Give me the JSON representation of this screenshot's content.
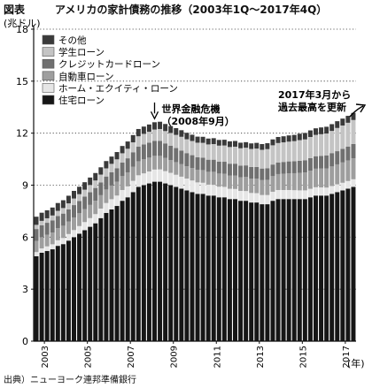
{
  "figure_label": "図表",
  "title": "アメリカの家計債務の推移（2003年1Q～2017年4Q）",
  "source": "出典）ニューヨーク連邦準備銀行",
  "colors": {
    "other": "#3a3a3a",
    "student": "#c4c4c4",
    "credit": "#707070",
    "auto": "#9e9e9e",
    "heloc": "#e6e6e6",
    "mortgage": "#161616",
    "grid": "#333333",
    "axis": "#111111"
  },
  "chart_data": {
    "type": "bar",
    "stacked": true,
    "ylabel": "(兆ドル)",
    "xlabel": "(年)",
    "ylim": [
      0,
      18
    ],
    "yticks": [
      0,
      3,
      6,
      9,
      12,
      15,
      18
    ],
    "xtick_labels": [
      "2003",
      "2005",
      "2007",
      "2009",
      "2011",
      "2013",
      "2015",
      "2017"
    ],
    "grid": "horizontal dotted",
    "legend_position": "top-left",
    "categories": [
      "2003 Q1",
      "2003 Q2",
      "2003 Q3",
      "2003 Q4",
      "2004 Q1",
      "2004 Q2",
      "2004 Q3",
      "2004 Q4",
      "2005 Q1",
      "2005 Q2",
      "2005 Q3",
      "2005 Q4",
      "2006 Q1",
      "2006 Q2",
      "2006 Q3",
      "2006 Q4",
      "2007 Q1",
      "2007 Q2",
      "2007 Q3",
      "2007 Q4",
      "2008 Q1",
      "2008 Q2",
      "2008 Q3",
      "2008 Q4",
      "2009 Q1",
      "2009 Q2",
      "2009 Q3",
      "2009 Q4",
      "2010 Q1",
      "2010 Q2",
      "2010 Q3",
      "2010 Q4",
      "2011 Q1",
      "2011 Q2",
      "2011 Q3",
      "2011 Q4",
      "2012 Q1",
      "2012 Q2",
      "2012 Q3",
      "2012 Q4",
      "2013 Q1",
      "2013 Q2",
      "2013 Q3",
      "2013 Q4",
      "2014 Q1",
      "2014 Q2",
      "2014 Q3",
      "2014 Q4",
      "2015 Q1",
      "2015 Q2",
      "2015 Q3",
      "2015 Q4",
      "2016 Q1",
      "2016 Q2",
      "2016 Q3",
      "2016 Q4",
      "2017 Q1",
      "2017 Q2",
      "2017 Q3",
      "2017 Q4"
    ],
    "series": [
      {
        "name": "住宅ローン",
        "color_key": "mortgage",
        "values": [
          4.9,
          5.1,
          5.2,
          5.3,
          5.5,
          5.6,
          5.8,
          6.0,
          6.2,
          6.4,
          6.6,
          6.8,
          7.1,
          7.4,
          7.6,
          7.8,
          8.1,
          8.3,
          8.6,
          8.9,
          9.0,
          9.1,
          9.2,
          9.2,
          9.1,
          9.0,
          8.9,
          8.8,
          8.7,
          8.6,
          8.5,
          8.5,
          8.4,
          8.4,
          8.3,
          8.3,
          8.2,
          8.2,
          8.1,
          8.1,
          8.0,
          8.0,
          7.9,
          7.9,
          8.1,
          8.2,
          8.2,
          8.2,
          8.2,
          8.2,
          8.2,
          8.3,
          8.4,
          8.4,
          8.4,
          8.5,
          8.6,
          8.7,
          8.8,
          8.9
        ]
      },
      {
        "name": "ホーム・エクイティ・ローン",
        "color_key": "heloc",
        "values": [
          0.24,
          0.25,
          0.27,
          0.29,
          0.32,
          0.35,
          0.38,
          0.41,
          0.44,
          0.47,
          0.5,
          0.53,
          0.55,
          0.57,
          0.59,
          0.6,
          0.62,
          0.63,
          0.65,
          0.67,
          0.68,
          0.69,
          0.7,
          0.71,
          0.71,
          0.71,
          0.7,
          0.69,
          0.68,
          0.67,
          0.66,
          0.64,
          0.63,
          0.62,
          0.61,
          0.6,
          0.59,
          0.58,
          0.57,
          0.56,
          0.55,
          0.54,
          0.53,
          0.53,
          0.52,
          0.52,
          0.52,
          0.52,
          0.51,
          0.5,
          0.5,
          0.49,
          0.48,
          0.47,
          0.46,
          0.45,
          0.45,
          0.44,
          0.44,
          0.44
        ]
      },
      {
        "name": "自動車ローン",
        "color_key": "auto",
        "values": [
          0.64,
          0.65,
          0.67,
          0.68,
          0.7,
          0.71,
          0.72,
          0.73,
          0.74,
          0.75,
          0.76,
          0.77,
          0.77,
          0.78,
          0.79,
          0.8,
          0.8,
          0.81,
          0.82,
          0.81,
          0.81,
          0.8,
          0.79,
          0.78,
          0.76,
          0.74,
          0.73,
          0.72,
          0.71,
          0.72,
          0.72,
          0.73,
          0.74,
          0.75,
          0.76,
          0.76,
          0.77,
          0.78,
          0.79,
          0.81,
          0.83,
          0.84,
          0.86,
          0.88,
          0.9,
          0.92,
          0.94,
          0.96,
          0.98,
          1.01,
          1.03,
          1.05,
          1.07,
          1.09,
          1.11,
          1.13,
          1.15,
          1.17,
          1.19,
          1.21
        ]
      },
      {
        "name": "クレジットカードローン",
        "color_key": "credit",
        "values": [
          0.69,
          0.69,
          0.69,
          0.7,
          0.7,
          0.7,
          0.7,
          0.71,
          0.71,
          0.72,
          0.73,
          0.74,
          0.74,
          0.75,
          0.76,
          0.78,
          0.79,
          0.81,
          0.83,
          0.85,
          0.86,
          0.86,
          0.86,
          0.86,
          0.84,
          0.83,
          0.81,
          0.79,
          0.76,
          0.74,
          0.73,
          0.71,
          0.7,
          0.7,
          0.69,
          0.69,
          0.68,
          0.68,
          0.67,
          0.67,
          0.67,
          0.67,
          0.67,
          0.67,
          0.67,
          0.67,
          0.68,
          0.69,
          0.69,
          0.7,
          0.71,
          0.72,
          0.72,
          0.73,
          0.75,
          0.77,
          0.76,
          0.78,
          0.8,
          0.83
        ]
      },
      {
        "name": "学生ローン",
        "color_key": "student",
        "values": [
          0.24,
          0.25,
          0.26,
          0.28,
          0.3,
          0.32,
          0.35,
          0.38,
          0.39,
          0.4,
          0.42,
          0.43,
          0.45,
          0.47,
          0.49,
          0.51,
          0.53,
          0.55,
          0.57,
          0.59,
          0.61,
          0.63,
          0.66,
          0.69,
          0.71,
          0.73,
          0.76,
          0.79,
          0.8,
          0.82,
          0.84,
          0.86,
          0.88,
          0.9,
          0.92,
          0.94,
          0.96,
          0.98,
          1.0,
          1.02,
          1.04,
          1.06,
          1.08,
          1.1,
          1.11,
          1.12,
          1.13,
          1.14,
          1.16,
          1.19,
          1.2,
          1.22,
          1.23,
          1.25,
          1.26,
          1.28,
          1.34,
          1.35,
          1.37,
          1.38
        ]
      },
      {
        "name": "その他",
        "color_key": "other",
        "values": [
          0.47,
          0.47,
          0.46,
          0.46,
          0.45,
          0.45,
          0.44,
          0.44,
          0.43,
          0.43,
          0.43,
          0.43,
          0.42,
          0.42,
          0.42,
          0.42,
          0.42,
          0.42,
          0.42,
          0.42,
          0.42,
          0.42,
          0.42,
          0.42,
          0.41,
          0.4,
          0.39,
          0.38,
          0.37,
          0.36,
          0.35,
          0.35,
          0.34,
          0.34,
          0.33,
          0.33,
          0.33,
          0.33,
          0.32,
          0.32,
          0.32,
          0.33,
          0.33,
          0.34,
          0.34,
          0.35,
          0.35,
          0.36,
          0.36,
          0.37,
          0.37,
          0.38,
          0.38,
          0.39,
          0.39,
          0.39,
          0.39,
          0.4,
          0.4,
          0.41
        ]
      }
    ],
    "legend_order": [
      "その他",
      "学生ローン",
      "クレジットカードローン",
      "自動車ローン",
      "ホーム・エクイティ・ローン",
      "住宅ローン"
    ],
    "annotations": [
      {
        "id": "crisis",
        "lines": [
          "世界金融危機",
          "（2008年9月）"
        ],
        "at_index": 22
      },
      {
        "id": "record",
        "lines": [
          "2017年3月から",
          "過去最高を更新"
        ],
        "at_index": 57
      }
    ]
  }
}
